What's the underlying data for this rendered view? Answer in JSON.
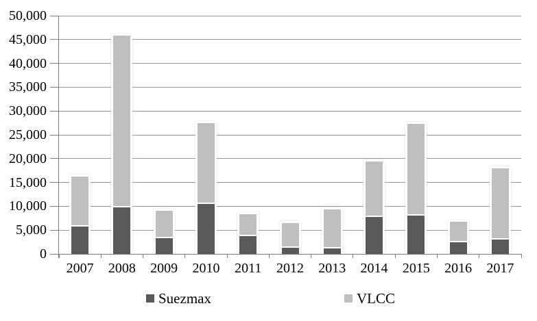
{
  "chart_data": {
    "type": "bar",
    "stacked": true,
    "title": "",
    "xlabel": "",
    "ylabel": "",
    "categories": [
      "2007",
      "2008",
      "2009",
      "2010",
      "2011",
      "2012",
      "2013",
      "2014",
      "2015",
      "2016",
      "2017"
    ],
    "series": [
      {
        "name": "Suezmax",
        "color": "#595959",
        "values": [
          5800,
          9800,
          3300,
          10500,
          3700,
          1300,
          1100,
          7700,
          8000,
          2500,
          3000
        ]
      },
      {
        "name": "VLCC",
        "color": "#bfbfbf",
        "values": [
          10500,
          36100,
          5800,
          16900,
          4600,
          5100,
          8200,
          11700,
          19300,
          4200,
          15000
        ]
      }
    ],
    "ylim": [
      0,
      50000
    ],
    "ytick_step": 5000,
    "ytick_labels": [
      "0",
      "5,000",
      "10,000",
      "15,000",
      "20,000",
      "25,000",
      "30,000",
      "35,000",
      "40,000",
      "45,000",
      "50,000"
    ],
    "grid": true,
    "legend_position": "bottom",
    "colors": {
      "gridline": "#969696",
      "axis": "#7a7a7a",
      "text": "#000000",
      "background": "#ffffff"
    }
  },
  "legend": {
    "items": [
      {
        "label": "Suezmax"
      },
      {
        "label": "VLCC"
      }
    ]
  }
}
